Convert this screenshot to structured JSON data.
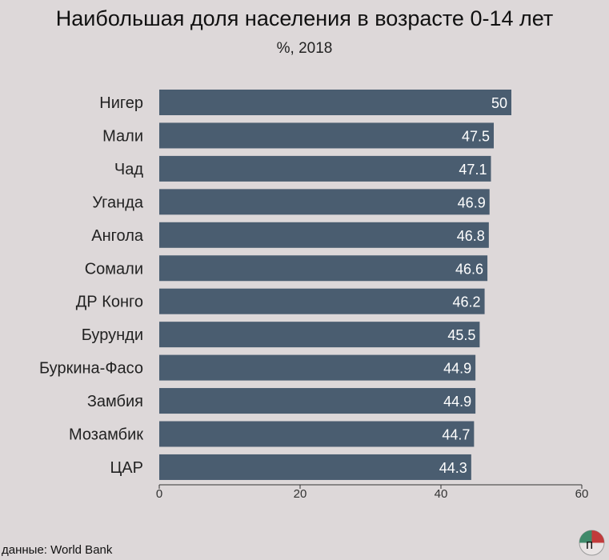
{
  "title": "Наибольшая доля населения в возрасте 0-14 лет",
  "subtitle": "%, 2018",
  "source": "данные: World Bank",
  "colors": {
    "bar": "#4a5d70",
    "background": "#ddd8d9",
    "axis": "#333333"
  },
  "logo_text": "п",
  "chart_data": {
    "type": "bar",
    "orientation": "horizontal",
    "title": "Наибольшая доля населения в возрасте 0-14 лет",
    "subtitle": "%, 2018",
    "categories": [
      "Нигер",
      "Мали",
      "Чад",
      "Уганда",
      "Ангола",
      "Сомали",
      "ДР Конго",
      "Бурунди",
      "Буркина-Фасо",
      "Замбия",
      "Мозамбик",
      "ЦАР"
    ],
    "values": [
      50,
      47.5,
      47.1,
      46.9,
      46.8,
      46.6,
      46.2,
      45.5,
      44.9,
      44.9,
      44.7,
      44.3
    ],
    "value_labels": [
      "50",
      "47.5",
      "47.1",
      "46.9",
      "46.8",
      "46.6",
      "46.2",
      "45.5",
      "44.9",
      "44.9",
      "44.7",
      "44.3"
    ],
    "xlim": [
      0,
      60
    ],
    "xticks": [
      0,
      20,
      40,
      60
    ],
    "grid": false,
    "legend": "none"
  }
}
